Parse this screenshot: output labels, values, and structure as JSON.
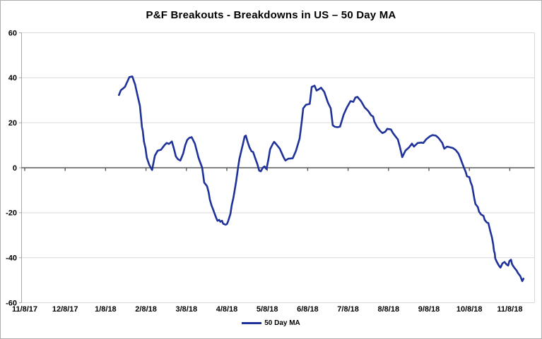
{
  "title": "P&F Breakouts - Breakdowns in US – 50 Day MA",
  "legend": {
    "label": "50 Day MA"
  },
  "colors": {
    "line": "#1f3299",
    "grid": "#d9d9d9",
    "zero_axis": "#595959",
    "y_axis": "#a6a6a6",
    "plot_right_border": "#d9d9d9",
    "text": "#000000",
    "frame_border": "#aeaeae",
    "background": "#ffffff"
  },
  "chart_data": {
    "type": "line",
    "title": "P&F Breakouts - Breakdowns in US – 50 Day MA",
    "x_tick_labels": [
      "11/8/17",
      "12/8/17",
      "1/8/18",
      "2/8/18",
      "3/8/18",
      "4/8/18",
      "5/8/18",
      "6/8/18",
      "7/8/18",
      "8/8/18",
      "9/8/18",
      "10/8/18",
      "11/8/18"
    ],
    "x_unit": "month tick index (0 = 11/8/17, one tick per month)",
    "ylim": [
      -60,
      60
    ],
    "y_ticks": [
      60,
      40,
      20,
      0,
      -20,
      -40,
      -60
    ],
    "grid": true,
    "legend_position": "bottom-center",
    "series": [
      {
        "name": "50 Day MA",
        "color": "#1f3299",
        "points": [
          [
            2.33,
            32.3
          ],
          [
            2.38,
            34.5
          ],
          [
            2.43,
            35.2
          ],
          [
            2.48,
            36.0
          ],
          [
            2.59,
            40.3
          ],
          [
            2.66,
            40.6
          ],
          [
            2.73,
            37.0
          ],
          [
            2.78,
            33.0
          ],
          [
            2.85,
            27.5
          ],
          [
            2.88,
            22.0
          ],
          [
            2.9,
            18.0
          ],
          [
            2.92,
            16.5
          ],
          [
            2.95,
            11.7
          ],
          [
            2.99,
            8.5
          ],
          [
            3.02,
            4.5
          ],
          [
            3.08,
            1.3
          ],
          [
            3.15,
            -1.0
          ],
          [
            3.22,
            5.4
          ],
          [
            3.29,
            7.6
          ],
          [
            3.37,
            8.0
          ],
          [
            3.46,
            10.1
          ],
          [
            3.51,
            11.0
          ],
          [
            3.57,
            10.6
          ],
          [
            3.64,
            11.7
          ],
          [
            3.69,
            8.5
          ],
          [
            3.74,
            5.0
          ],
          [
            3.79,
            3.8
          ],
          [
            3.85,
            3.2
          ],
          [
            3.92,
            6.3
          ],
          [
            3.97,
            10.0
          ],
          [
            4.02,
            12.3
          ],
          [
            4.07,
            13.3
          ],
          [
            4.13,
            13.6
          ],
          [
            4.21,
            10.7
          ],
          [
            4.3,
            4.4
          ],
          [
            4.39,
            0.0
          ],
          [
            4.44,
            -6.6
          ],
          [
            4.51,
            -8.2
          ],
          [
            4.55,
            -11.0
          ],
          [
            4.58,
            -14.2
          ],
          [
            4.62,
            -16.7
          ],
          [
            4.67,
            -19.0
          ],
          [
            4.7,
            -20.5
          ],
          [
            4.74,
            -22.4
          ],
          [
            4.77,
            -23.6
          ],
          [
            4.81,
            -23.2
          ],
          [
            4.84,
            -24.0
          ],
          [
            4.88,
            -23.6
          ],
          [
            4.91,
            -24.9
          ],
          [
            4.97,
            -25.3
          ],
          [
            5.0,
            -25.1
          ],
          [
            5.03,
            -23.9
          ],
          [
            5.09,
            -20.5
          ],
          [
            5.12,
            -16.7
          ],
          [
            5.16,
            -13.5
          ],
          [
            5.19,
            -10.4
          ],
          [
            5.23,
            -6.0
          ],
          [
            5.28,
            0.3
          ],
          [
            5.31,
            3.8
          ],
          [
            5.35,
            6.9
          ],
          [
            5.4,
            10.7
          ],
          [
            5.44,
            13.9
          ],
          [
            5.47,
            14.3
          ],
          [
            5.51,
            11.7
          ],
          [
            5.56,
            9.1
          ],
          [
            5.61,
            7.3
          ],
          [
            5.65,
            7.0
          ],
          [
            5.7,
            4.4
          ],
          [
            5.75,
            1.9
          ],
          [
            5.8,
            -1.3
          ],
          [
            5.84,
            -1.6
          ],
          [
            5.89,
            0.0
          ],
          [
            5.93,
            0.6
          ],
          [
            5.98,
            -0.6
          ],
          [
            6.03,
            3.8
          ],
          [
            6.07,
            8.2
          ],
          [
            6.14,
            10.7
          ],
          [
            6.17,
            11.5
          ],
          [
            6.22,
            10.5
          ],
          [
            6.31,
            8.5
          ],
          [
            6.4,
            4.8
          ],
          [
            6.45,
            3.2
          ],
          [
            6.52,
            4.0
          ],
          [
            6.63,
            4.2
          ],
          [
            6.71,
            7.5
          ],
          [
            6.8,
            13.0
          ],
          [
            6.85,
            20.0
          ],
          [
            6.89,
            26.4
          ],
          [
            6.96,
            28.0
          ],
          [
            7.05,
            28.4
          ],
          [
            7.1,
            35.9
          ],
          [
            7.17,
            36.5
          ],
          [
            7.22,
            34.3
          ],
          [
            7.27,
            34.8
          ],
          [
            7.33,
            35.6
          ],
          [
            7.41,
            33.7
          ],
          [
            7.5,
            29.0
          ],
          [
            7.57,
            26.4
          ],
          [
            7.62,
            18.9
          ],
          [
            7.67,
            18.2
          ],
          [
            7.74,
            18.0
          ],
          [
            7.8,
            18.3
          ],
          [
            7.89,
            23.6
          ],
          [
            7.97,
            26.8
          ],
          [
            8.06,
            29.6
          ],
          [
            8.13,
            29.3
          ],
          [
            8.18,
            31.2
          ],
          [
            8.23,
            31.5
          ],
          [
            8.32,
            29.6
          ],
          [
            8.41,
            26.8
          ],
          [
            8.5,
            25.2
          ],
          [
            8.57,
            23.3
          ],
          [
            8.62,
            22.7
          ],
          [
            8.65,
            20.5
          ],
          [
            8.72,
            18.0
          ],
          [
            8.79,
            16.4
          ],
          [
            8.85,
            15.4
          ],
          [
            8.92,
            16.0
          ],
          [
            8.97,
            17.3
          ],
          [
            9.06,
            17.0
          ],
          [
            9.11,
            15.4
          ],
          [
            9.16,
            14.2
          ],
          [
            9.23,
            12.6
          ],
          [
            9.28,
            9.4
          ],
          [
            9.32,
            6.3
          ],
          [
            9.34,
            4.7
          ],
          [
            9.42,
            7.6
          ],
          [
            9.51,
            9.1
          ],
          [
            9.58,
            10.7
          ],
          [
            9.63,
            9.4
          ],
          [
            9.72,
            11.0
          ],
          [
            9.81,
            11.2
          ],
          [
            9.86,
            11.0
          ],
          [
            9.93,
            12.6
          ],
          [
            10.02,
            13.9
          ],
          [
            10.09,
            14.5
          ],
          [
            10.17,
            14.3
          ],
          [
            10.24,
            13.2
          ],
          [
            10.33,
            11.0
          ],
          [
            10.38,
            8.5
          ],
          [
            10.45,
            9.4
          ],
          [
            10.54,
            9.0
          ],
          [
            10.59,
            8.8
          ],
          [
            10.66,
            7.9
          ],
          [
            10.73,
            6.3
          ],
          [
            10.77,
            4.7
          ],
          [
            10.82,
            2.2
          ],
          [
            10.86,
            0.3
          ],
          [
            10.91,
            -1.9
          ],
          [
            10.94,
            -3.8
          ],
          [
            11.0,
            -4.2
          ],
          [
            11.03,
            -6.3
          ],
          [
            11.07,
            -8.2
          ],
          [
            11.12,
            -13.5
          ],
          [
            11.15,
            -16.1
          ],
          [
            11.21,
            -17.5
          ],
          [
            11.24,
            -19.5
          ],
          [
            11.29,
            -20.8
          ],
          [
            11.35,
            -21.4
          ],
          [
            11.38,
            -23.2
          ],
          [
            11.43,
            -24.3
          ],
          [
            11.47,
            -24.6
          ],
          [
            11.52,
            -28.3
          ],
          [
            11.56,
            -31.0
          ],
          [
            11.59,
            -34.0
          ],
          [
            11.61,
            -37.0
          ],
          [
            11.63,
            -38.1
          ],
          [
            11.64,
            -40.3
          ],
          [
            11.68,
            -41.9
          ],
          [
            11.73,
            -43.5
          ],
          [
            11.77,
            -44.4
          ],
          [
            11.82,
            -42.5
          ],
          [
            11.87,
            -41.9
          ],
          [
            11.92,
            -43.0
          ],
          [
            11.96,
            -43.5
          ],
          [
            11.99,
            -41.5
          ],
          [
            12.03,
            -40.9
          ],
          [
            12.06,
            -43.0
          ],
          [
            12.11,
            -44.4
          ],
          [
            12.17,
            -45.7
          ],
          [
            12.2,
            -46.7
          ],
          [
            12.26,
            -48.2
          ],
          [
            12.31,
            -50.4
          ],
          [
            12.34,
            -49.3
          ]
        ]
      }
    ]
  }
}
